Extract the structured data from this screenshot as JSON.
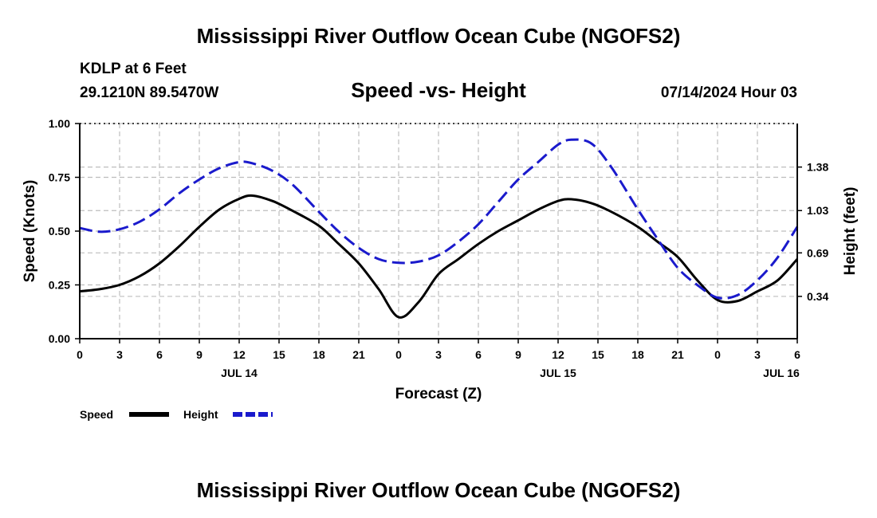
{
  "header": {
    "main_title": "Mississippi River Outflow Ocean Cube (NGOFS2)",
    "station": "KDLP at 6 Feet",
    "coords": "29.1210N  89.5470W",
    "datetime": "07/14/2024 Hour 03",
    "bottom_title": "Mississippi River Outflow Ocean Cube (NGOFS2)"
  },
  "chart_data": {
    "type": "line",
    "title": "Speed -vs- Height",
    "xlabel": "Forecast (Z)",
    "ylabel": "Speed (Knots)",
    "y2label": "Height (feet)",
    "ylim": [
      0,
      1
    ],
    "y2lim": [
      0,
      1.73
    ],
    "xlim": [
      0,
      54
    ],
    "x_ticks": [
      0,
      3,
      6,
      9,
      12,
      15,
      18,
      21,
      24,
      27,
      30,
      33,
      36,
      39,
      42,
      45,
      48,
      51,
      54
    ],
    "x_tick_labels": [
      "0",
      "3",
      "6",
      "9",
      "12",
      "15",
      "18",
      "21",
      "0",
      "3",
      "6",
      "9",
      "12",
      "15",
      "18",
      "21",
      "0",
      "3",
      "6"
    ],
    "y_ticks": [
      0,
      0.25,
      0.5,
      0.75,
      1
    ],
    "y_tick_labels": [
      "0.00",
      "0.25",
      "0.50",
      "0.75",
      "1.00"
    ],
    "y2_ticks": [
      0.34,
      0.69,
      1.03,
      1.38
    ],
    "y2_tick_labels": [
      "0.34",
      "0.69",
      "1.03",
      "1.38"
    ],
    "date_labels": [
      {
        "x": 12,
        "label": "JUL 14"
      },
      {
        "x": 36,
        "label": "JUL 15"
      },
      {
        "x": 52.8,
        "label": "JUL 16"
      }
    ],
    "grid": true,
    "legend_position": "bottom-left",
    "series": [
      {
        "name": "Speed",
        "color": "#000000",
        "style": "solid",
        "axis": "left",
        "x": [
          0,
          1.5,
          3,
          4.5,
          6,
          7.5,
          9,
          10.5,
          12,
          13,
          14.5,
          16,
          18,
          19.5,
          21,
          22.5,
          24,
          25.5,
          27,
          28.5,
          30,
          31.5,
          33,
          34.5,
          36,
          37,
          38.5,
          40,
          42,
          43.5,
          45,
          46.5,
          48,
          49.5,
          51,
          52.5,
          54
        ],
        "values": [
          0.22,
          0.23,
          0.25,
          0.29,
          0.35,
          0.43,
          0.52,
          0.6,
          0.65,
          0.665,
          0.64,
          0.595,
          0.525,
          0.44,
          0.35,
          0.23,
          0.1,
          0.17,
          0.3,
          0.37,
          0.44,
          0.5,
          0.55,
          0.6,
          0.64,
          0.648,
          0.63,
          0.59,
          0.52,
          0.45,
          0.38,
          0.27,
          0.18,
          0.175,
          0.22,
          0.27,
          0.37
        ]
      },
      {
        "name": "Height",
        "color": "#1a1acc",
        "style": "dashed",
        "axis": "right",
        "x": [
          0,
          1.5,
          3,
          4.5,
          6,
          7.5,
          9,
          10.5,
          12,
          13,
          14.5,
          16,
          18,
          19.5,
          21,
          22.5,
          24,
          25.5,
          27,
          28.5,
          30,
          31.5,
          33,
          34.5,
          36,
          37,
          38.5,
          40,
          42,
          43.5,
          45,
          46.5,
          48,
          49.5,
          51,
          52.5,
          54
        ],
        "values": [
          0.89,
          0.86,
          0.88,
          0.94,
          1.04,
          1.17,
          1.28,
          1.37,
          1.42,
          1.41,
          1.35,
          1.24,
          1.02,
          0.86,
          0.73,
          0.64,
          0.61,
          0.62,
          0.67,
          0.78,
          0.92,
          1.1,
          1.28,
          1.42,
          1.56,
          1.6,
          1.57,
          1.38,
          1.04,
          0.8,
          0.57,
          0.43,
          0.33,
          0.35,
          0.47,
          0.65,
          0.9
        ]
      }
    ]
  }
}
